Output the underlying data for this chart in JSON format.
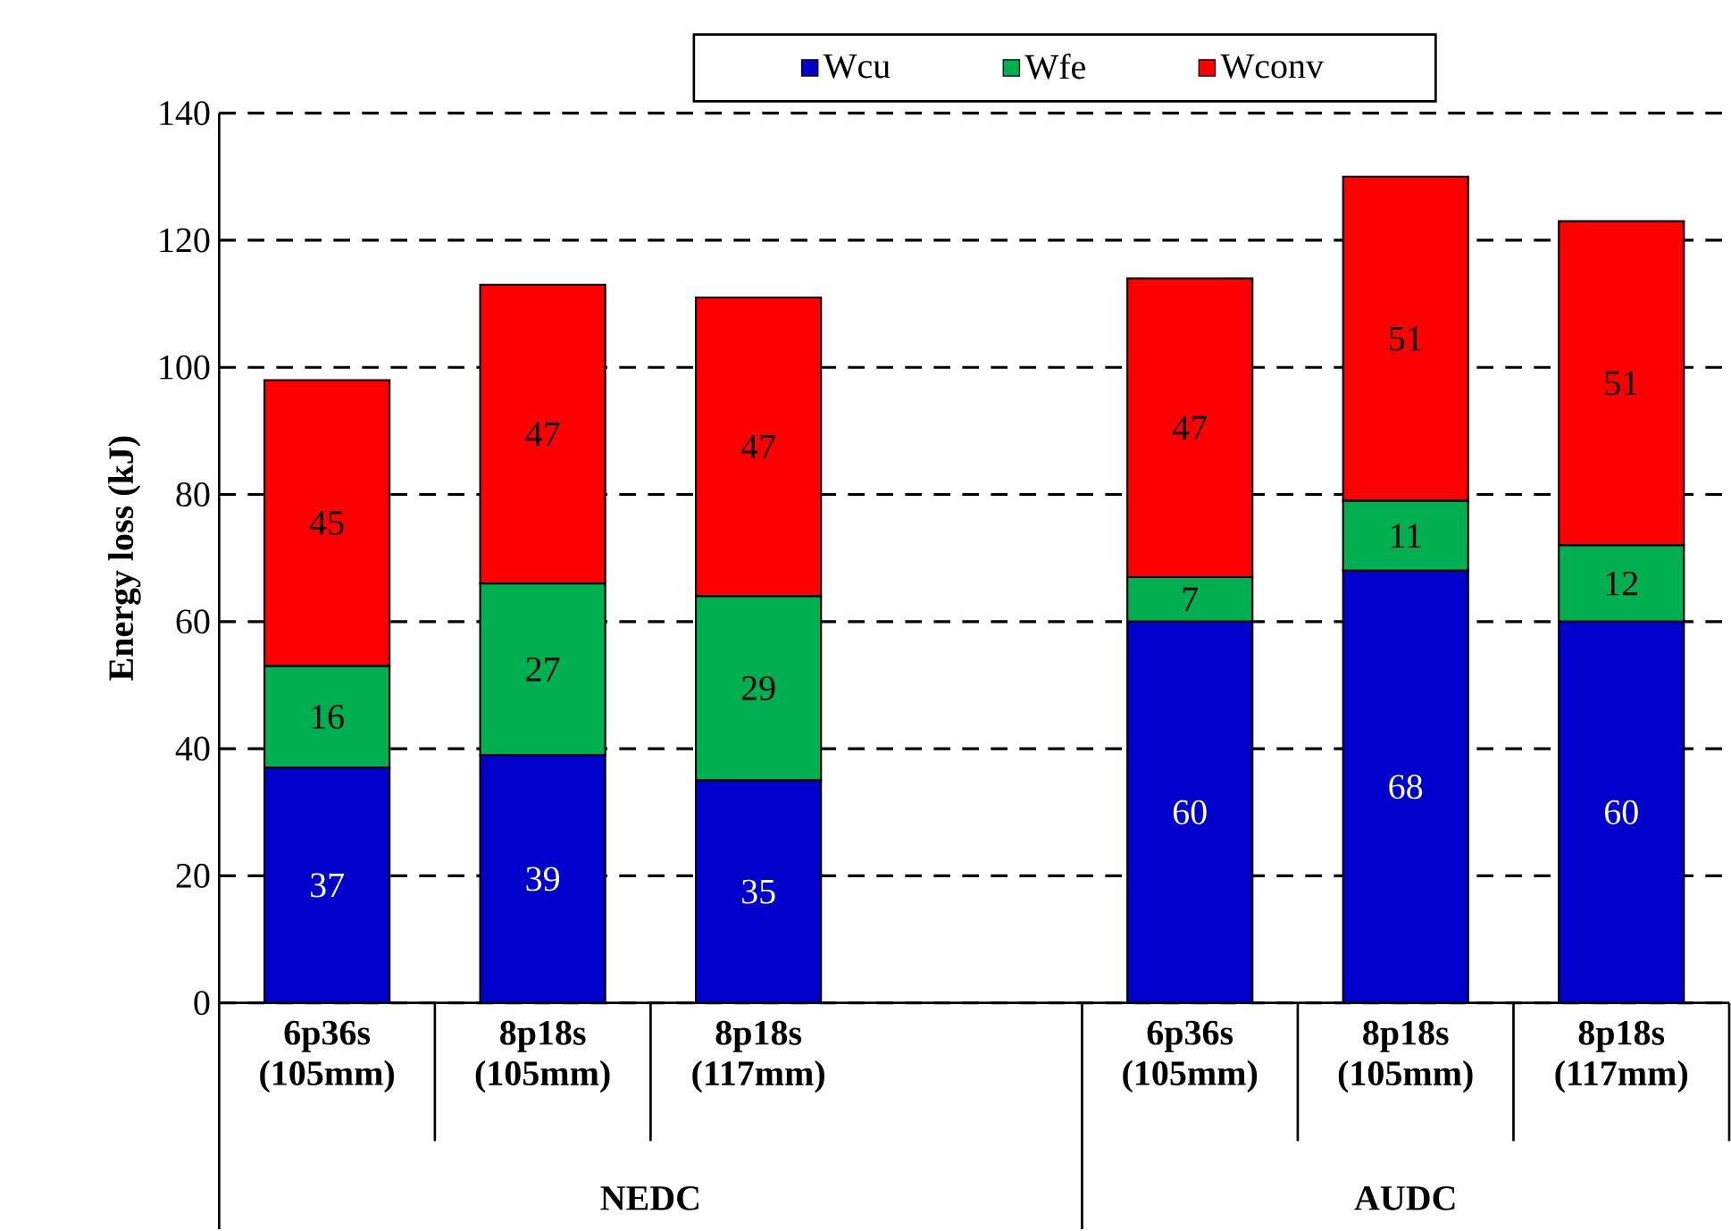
{
  "chart_data": {
    "type": "bar",
    "stacked": true,
    "ylabel": "Energy loss (kJ)",
    "categories": [
      "6p36s (105mm)",
      "8p18s (105mm)",
      "8p18s (117mm)",
      null,
      "6p36s (105mm)",
      "8p18s (105mm)",
      "8p18s (117mm)"
    ],
    "series": [
      {
        "name": "Wcu",
        "color": "#0000cc",
        "values": [
          37,
          39,
          35,
          null,
          60,
          68,
          60
        ]
      },
      {
        "name": "Wfe",
        "color": "#00b050",
        "values": [
          16,
          27,
          29,
          null,
          7,
          11,
          12
        ]
      },
      {
        "name": "Wconv",
        "color": "#ff0000",
        "values": [
          45,
          47,
          47,
          null,
          47,
          51,
          51
        ]
      }
    ],
    "ylim": [
      0,
      140
    ],
    "yticks": [
      0,
      20,
      40,
      60,
      80,
      100,
      120,
      140
    ],
    "grid": "y",
    "line_style": "dashed",
    "legend": "top",
    "data_labels": true,
    "annotations": [
      "NEDC",
      "AUDC"
    ]
  }
}
